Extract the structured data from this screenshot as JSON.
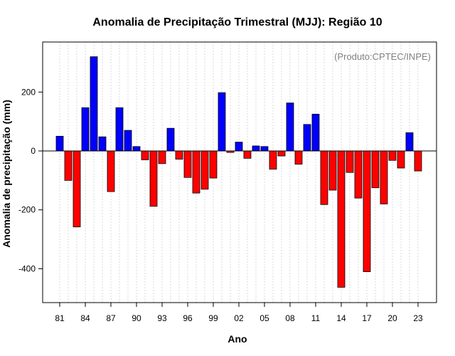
{
  "chart_data": {
    "type": "bar",
    "title": "Anomalia de Precipitação Trimestral (MJJ): Região 10",
    "xlabel": "Ano",
    "ylabel": "Anomalia de precipitação (mm)",
    "annotation": "(Produto:CPTEC/INPE)",
    "ylim": [
      -515,
      370
    ],
    "yticks": [
      200,
      0,
      -200,
      -400
    ],
    "positive_color": "#0000ff",
    "negative_color": "#ff0000",
    "categories": [
      "1981",
      "1982",
      "1983",
      "1984",
      "1985",
      "1986",
      "1987",
      "1988",
      "1989",
      "1990",
      "1991",
      "1992",
      "1993",
      "1994",
      "1995",
      "1996",
      "1997",
      "1998",
      "1999",
      "2000",
      "2001",
      "2002",
      "2003",
      "2004",
      "2005",
      "2006",
      "2007",
      "2008",
      "2009",
      "2010",
      "2011",
      "2012",
      "2013",
      "2014",
      "2015",
      "2016",
      "2017",
      "2018",
      "2019",
      "2020",
      "2021",
      "2022",
      "2023"
    ],
    "values": [
      50,
      -100,
      -258,
      147,
      320,
      48,
      -138,
      147,
      70,
      15,
      -30,
      -188,
      -43,
      77,
      -28,
      -90,
      -143,
      -130,
      -92,
      198,
      -5,
      30,
      -25,
      17,
      15,
      -62,
      -17,
      163,
      -45,
      90,
      125,
      -182,
      -133,
      -463,
      -73,
      -160,
      -410,
      -125,
      -180,
      -32,
      -58,
      62,
      -68
    ],
    "x_tick_labels": [
      "81",
      "84",
      "87",
      "90",
      "93",
      "96",
      "99",
      "02",
      "05",
      "08",
      "11",
      "14",
      "17",
      "20",
      "23"
    ],
    "x_tick_every": 3
  }
}
